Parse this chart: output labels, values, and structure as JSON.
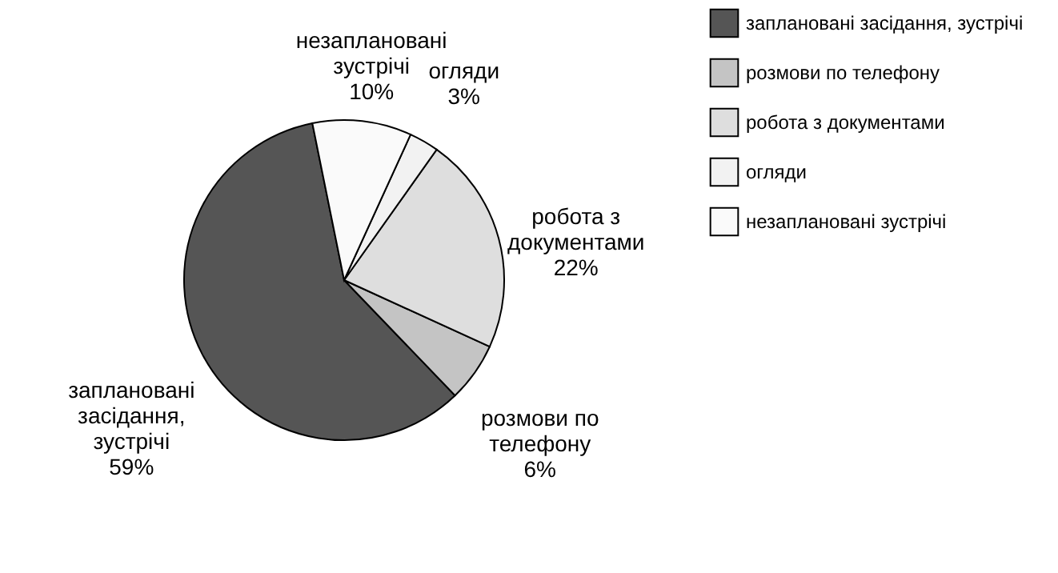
{
  "chart_data": {
    "type": "pie",
    "categories": [
      "заплановані засідання, зустрічі",
      "розмови по телефону",
      "робота з документами",
      "огляди",
      "незаплановані зустрічі"
    ],
    "values": [
      59,
      6,
      22,
      3,
      10
    ],
    "value_labels": [
      "59%",
      "6%",
      "22%",
      "3%",
      "10%"
    ],
    "colors": [
      "#555555",
      "#c4c4c4",
      "#dedede",
      "#f2f2f2",
      "#fafafa"
    ],
    "legend": "right"
  }
}
